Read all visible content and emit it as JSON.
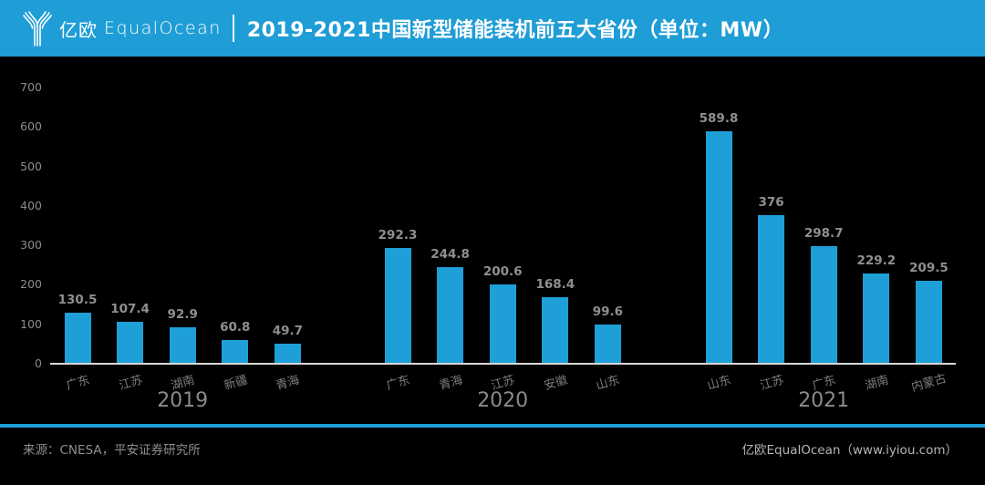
{
  "header": {
    "logo_cn": "亿欧",
    "logo_en": "EqualOcean",
    "title": "2019-2021中国新型储能装机前五大省份（单位：MW）"
  },
  "chart_data": {
    "type": "bar",
    "title": "2019-2021中国新型储能装机前五大省份（单位：MW）",
    "unit": "MW",
    "ylim": [
      0,
      700
    ],
    "yticks": [
      0,
      100,
      200,
      300,
      400,
      500,
      600,
      700
    ],
    "grid": false,
    "legend": null,
    "groups": [
      {
        "year": "2019",
        "categories": [
          "广东",
          "江苏",
          "湖南",
          "新疆",
          "青海"
        ],
        "values": [
          130.5,
          107.4,
          92.9,
          60.8,
          49.7
        ]
      },
      {
        "year": "2020",
        "categories": [
          "广东",
          "青海",
          "江苏",
          "安徽",
          "山东"
        ],
        "values": [
          292.3,
          244.8,
          200.6,
          168.4,
          99.6
        ]
      },
      {
        "year": "2021",
        "categories": [
          "山东",
          "江苏",
          "广东",
          "湖南",
          "内蒙古"
        ],
        "values": [
          589.8,
          376,
          298.7,
          229.2,
          209.5
        ]
      }
    ],
    "bar_color": "#1f9fd8",
    "background": "#000000"
  },
  "colors": {
    "accent": "#1f9dd6",
    "header_text": "#ffffff",
    "axis_text": "#8c8c8c",
    "value_text": "#8f8f8f",
    "baseline": "#d9d9d9"
  },
  "footer": {
    "source": "来源：CNESA，平安证券研究所",
    "credit": "亿欧EqualOcean（www.iyiou.com）"
  }
}
